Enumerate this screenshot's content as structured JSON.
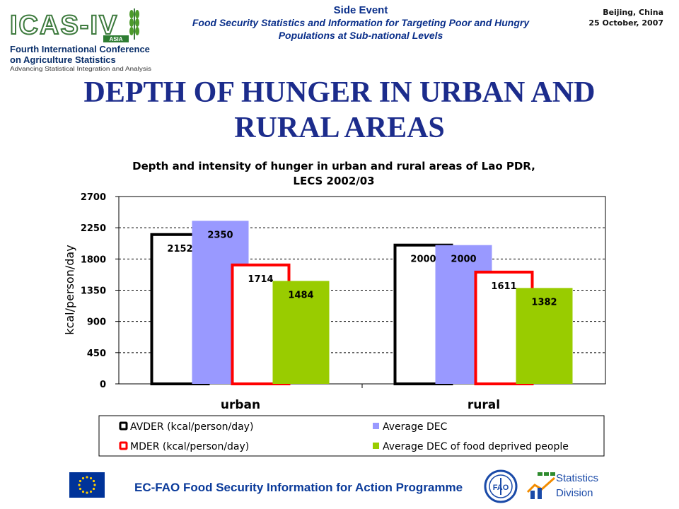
{
  "header": {
    "logo": {
      "wordmark": "ICAS-IV",
      "region": "ASIA",
      "line1": "Fourth International Conference",
      "line2": "on Agriculture Statistics",
      "tagline": "Advancing Statistical Integration and Analysis"
    },
    "event_label": "Side Event",
    "event_title_1": "Food Security Statistics and Information for Targeting Poor and Hungry",
    "event_title_2": "Populations at Sub-national Levels",
    "place": "Beijing, China",
    "date": "25 October, 2007"
  },
  "slide": {
    "title_line1": "DEPTH OF HUNGER IN URBAN AND",
    "title_line2": "RURAL AREAS"
  },
  "chart_data": {
    "type": "bar",
    "title_line1": "Depth and intensity of hunger in urban and rural areas of Lao PDR,",
    "title_line2": "LECS 2002/03",
    "ylabel": "kcal/person/day",
    "xlabel": "",
    "ylim": [
      0,
      2700
    ],
    "yticks": [
      "0",
      "450",
      "900",
      "1350",
      "1800",
      "2250",
      "2700"
    ],
    "grid": true,
    "legend_position": "bottom",
    "categories": [
      "urban",
      "rural"
    ],
    "series": [
      {
        "name": "AVDER (kcal/person/day)",
        "values": [
          2152,
          2000
        ],
        "labels": [
          "2152",
          "2000"
        ],
        "fill": "#ffffff",
        "stroke": "#000000"
      },
      {
        "name": "Average DEC",
        "values": [
          2350,
          2000
        ],
        "labels": [
          "2350",
          "2000"
        ],
        "fill": "#9999ff",
        "stroke": "none"
      },
      {
        "name": "MDER (kcal/person/day)",
        "values": [
          1714,
          1611
        ],
        "labels": [
          "1714",
          "1611"
        ],
        "fill": "#ffffff",
        "stroke": "#ff0000"
      },
      {
        "name": "Average DEC of food deprived people",
        "values": [
          1484,
          1382
        ],
        "labels": [
          "1484",
          "1382"
        ],
        "fill": "#99cc00",
        "stroke": "none"
      }
    ]
  },
  "footer": {
    "programme": "EC-FAO Food Security Information for Action Programme",
    "fao_text": "FAO",
    "stat_line1": "Statistics",
    "stat_line2": "Division"
  },
  "colors": {
    "title": "#1c2c8c",
    "header_text": "#0a2f8a",
    "eu_blue": "#003399",
    "eu_star": "#ffcc00"
  }
}
